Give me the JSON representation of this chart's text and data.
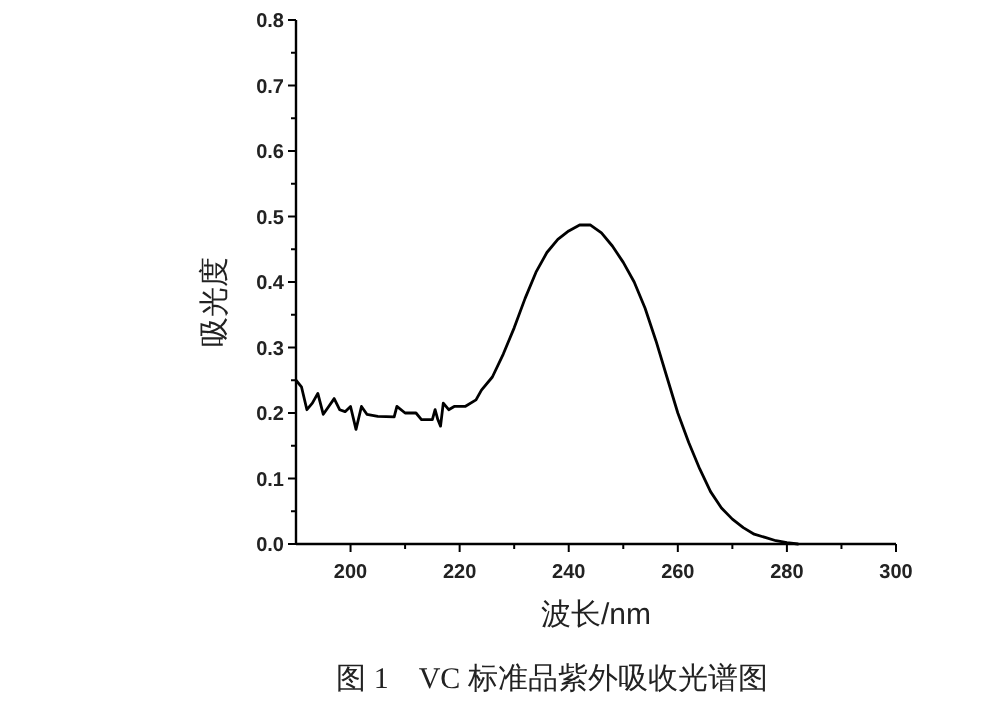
{
  "chart_data": {
    "type": "line",
    "xlabel": "波长/nm",
    "ylabel": "吸光度",
    "annotations": [
      "图 1　VC 标准品紫外吸收光谱图"
    ],
    "xlim": [
      190,
      300
    ],
    "ylim": [
      0,
      0.8
    ],
    "xticks": [
      200,
      {
        "value": 210,
        "label": null
      },
      220,
      {
        "value": 230,
        "label": null
      },
      240,
      {
        "value": 250,
        "label": null
      },
      260,
      {
        "value": 270,
        "label": null
      },
      280,
      {
        "value": 290,
        "label": null
      },
      300
    ],
    "yticks": [
      {
        "value": 0,
        "label": "0.0"
      },
      {
        "value": 0.05,
        "label": null
      },
      0.1,
      {
        "value": 0.15,
        "label": null
      },
      0.2,
      {
        "value": 0.25,
        "label": null
      },
      0.3,
      {
        "value": 0.35,
        "label": null
      },
      0.4,
      {
        "value": 0.45,
        "label": null
      },
      0.5,
      {
        "value": 0.55,
        "label": null
      },
      0.6,
      {
        "value": 0.65,
        "label": null
      },
      0.7,
      {
        "value": 0.75,
        "label": null
      },
      0.8
    ],
    "grid": false,
    "series": [
      {
        "color": "#000000",
        "x": [
          190,
          191,
          192,
          193,
          194,
          195,
          196,
          197,
          198,
          199,
          200,
          201,
          202,
          203,
          205,
          208,
          208.5,
          210,
          212,
          213,
          215,
          215.5,
          216,
          216.5,
          217,
          218,
          219,
          221,
          223,
          224,
          226,
          228,
          230,
          232,
          234,
          236,
          238,
          240,
          242,
          244,
          246,
          248,
          250,
          252,
          254,
          256,
          258,
          260,
          262,
          264,
          266,
          268,
          270,
          272,
          274,
          276,
          278,
          280,
          282
        ],
        "values": [
          0.25,
          0.24,
          0.205,
          0.215,
          0.23,
          0.198,
          0.21,
          0.222,
          0.205,
          0.202,
          0.21,
          0.175,
          0.21,
          0.198,
          0.195,
          0.194,
          0.21,
          0.2,
          0.2,
          0.19,
          0.19,
          0.205,
          0.19,
          0.18,
          0.215,
          0.205,
          0.21,
          0.21,
          0.22,
          0.235,
          0.255,
          0.29,
          0.33,
          0.375,
          0.415,
          0.445,
          0.465,
          0.478,
          0.487,
          0.487,
          0.475,
          0.455,
          0.43,
          0.4,
          0.36,
          0.31,
          0.255,
          0.2,
          0.155,
          0.115,
          0.08,
          0.055,
          0.038,
          0.025,
          0.015,
          0.01,
          0.005,
          0.002,
          0.0
        ]
      }
    ]
  }
}
